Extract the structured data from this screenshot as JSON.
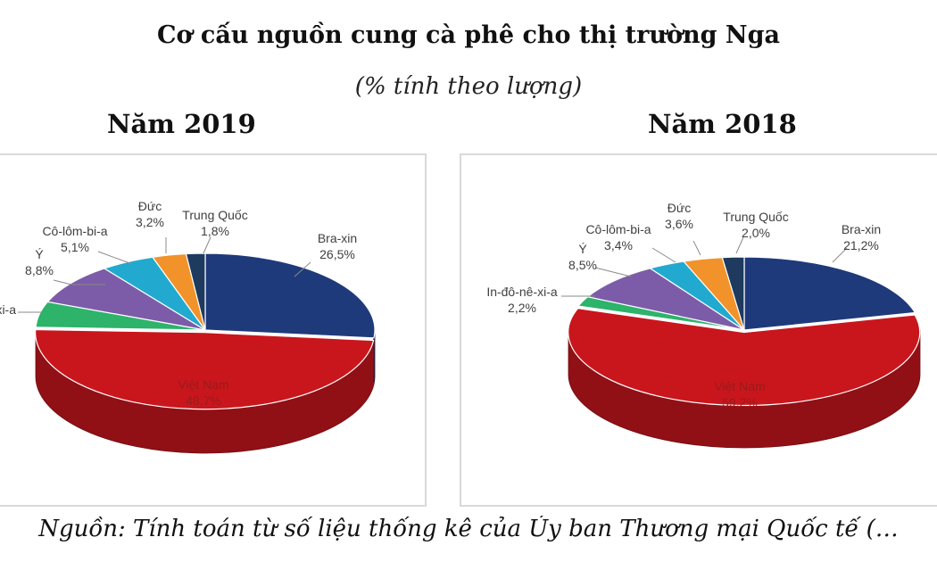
{
  "title": "Cơ cấu nguồn cung cà phê cho thị trường Nga",
  "subtitle": "(% tính theo lượng)",
  "source": "Nguồn: Tính toán từ số liệu thống kê của Ủy ban Thương mại Quốc tế (…",
  "colors": {
    "Bra-xin": "#1f3a7a",
    "Việt Nam": "#c9161d",
    "In-đô-nê-xi-a": "#2db36a",
    "Ý": "#7c5ca8",
    "Cô-lôm-bi-a": "#22a9cf",
    "Đức": "#f2922a",
    "Trung Quốc": "#1e3a5f"
  },
  "chart_data": [
    {
      "type": "pie",
      "title": "Năm 2019",
      "slices": [
        {
          "label": "Bra-xin",
          "value": 26.5,
          "value_label": "26,5%"
        },
        {
          "label": "Việt Nam",
          "value": 48.7,
          "value_label": "48,7%"
        },
        {
          "label": "In-đô-nê-xi-a",
          "display_label": "xi-a",
          "value": 5.4,
          "value_label": ""
        },
        {
          "label": "Ý",
          "value": 8.8,
          "value_label": "8,8%"
        },
        {
          "label": "Cô-lôm-bi-a",
          "value": 5.1,
          "value_label": "5,1%"
        },
        {
          "label": "Đức",
          "value": 3.2,
          "value_label": "3,2%"
        },
        {
          "label": "Trung Quốc",
          "value": 1.8,
          "value_label": "1,8%"
        }
      ]
    },
    {
      "type": "pie",
      "title": "Năm 2018",
      "slices": [
        {
          "label": "Bra-xin",
          "value": 21.2,
          "value_label": "21,2%"
        },
        {
          "label": "Việt Nam",
          "value": 59.2,
          "value_label": "59,2%"
        },
        {
          "label": "In-đô-nê-xi-a",
          "value": 2.2,
          "value_label": "2,2%"
        },
        {
          "label": "Ý",
          "value": 8.5,
          "value_label": "8,5%"
        },
        {
          "label": "Cô-lôm-bi-a",
          "value": 3.4,
          "value_label": "3,4%"
        },
        {
          "label": "Đức",
          "value": 3.6,
          "value_label": "3,6%"
        },
        {
          "label": "Trung Quốc",
          "value": 2.0,
          "value_label": "2,0%"
        }
      ]
    }
  ]
}
